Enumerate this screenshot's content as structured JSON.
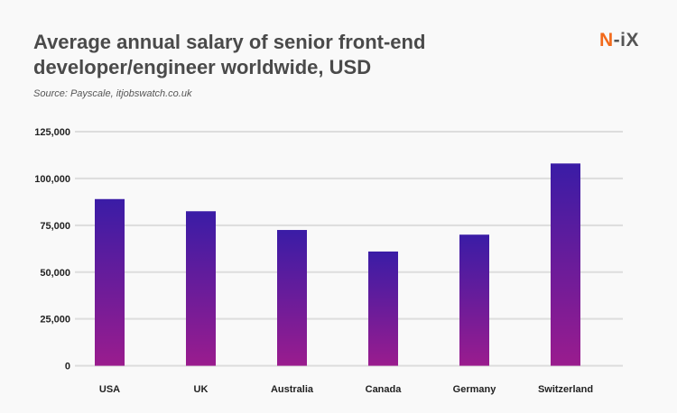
{
  "header": {
    "title": "Average annual salary of senior front-end developer/engineer worldwide, USD",
    "source": "Source: Payscale, itjobswatch.co.uk",
    "logo": {
      "prefix": "N",
      "suffix": "-iX"
    }
  },
  "chart_data": {
    "type": "bar",
    "title": "Average annual salary of senior front-end developer/engineer worldwide, USD",
    "xlabel": "",
    "ylabel": "",
    "categories": [
      "USA",
      "UK",
      "Australia",
      "Canada",
      "Germany",
      "Switzerland"
    ],
    "values": [
      89000,
      82500,
      72500,
      61000,
      70000,
      108000
    ],
    "ylim": [
      0,
      125000
    ],
    "yticks": [
      0,
      25000,
      50000,
      75000,
      100000,
      125000
    ],
    "ytick_labels": [
      "0",
      "25,000",
      "50,000",
      "75,000",
      "100,000",
      "125,000"
    ],
    "grid": true,
    "colors": {
      "bar_top": "#3a1ca6",
      "bar_bottom": "#9a1c8e",
      "grid": "#dddddd"
    }
  }
}
